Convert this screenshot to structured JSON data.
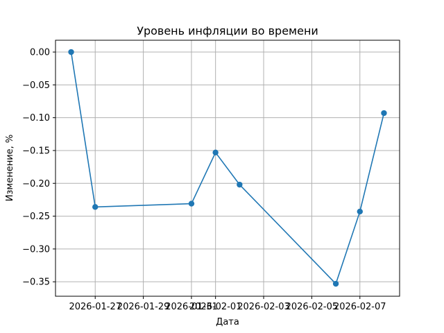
{
  "chart_data": {
    "type": "line",
    "title": "Уровень инфляции во времени",
    "xlabel": "Дата",
    "ylabel": "Изменение, %",
    "x_ticks": [
      "2026-01-27",
      "2026-01-29",
      "2026-01-31",
      "2026-02-01",
      "2026-02-03",
      "2026-02-05",
      "2026-02-07"
    ],
    "y_ticks": [
      "0.00",
      "−0.05",
      "−0.10",
      "−0.15",
      "−0.20",
      "−0.25",
      "−0.30",
      "−0.35"
    ],
    "ylim": [
      -0.372,
      0.018
    ],
    "grid": true,
    "series": [
      {
        "color": "#1f77b4",
        "points": [
          {
            "x": "2026-01-26",
            "y": 0.0
          },
          {
            "x": "2026-01-27",
            "y": -0.236
          },
          {
            "x": "2026-01-31",
            "y": -0.231
          },
          {
            "x": "2026-02-01",
            "y": -0.153
          },
          {
            "x": "2026-02-02",
            "y": -0.202
          },
          {
            "x": "2026-02-06",
            "y": -0.353
          },
          {
            "x": "2026-02-07",
            "y": -0.243
          },
          {
            "x": "2026-02-08",
            "y": -0.093
          }
        ]
      }
    ]
  }
}
